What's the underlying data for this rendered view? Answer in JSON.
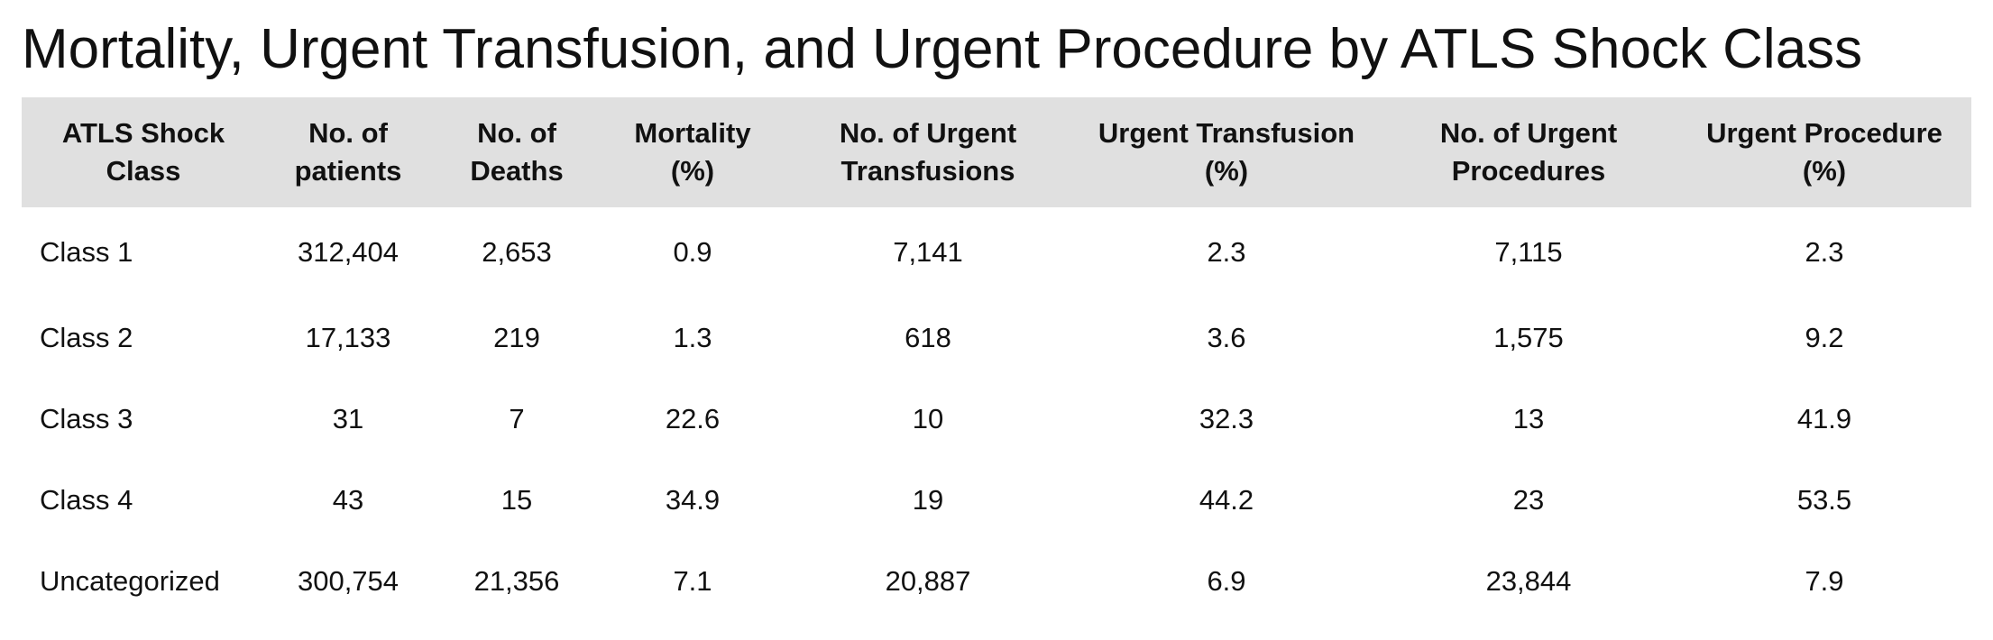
{
  "title": "Mortality, Urgent Transfusion, and Urgent Procedure by ATLS Shock Class",
  "table": {
    "headers": [
      [
        "ATLS Shock",
        "Class"
      ],
      [
        "No. of",
        "patients"
      ],
      [
        "No. of",
        "Deaths"
      ],
      [
        "Mortality",
        "(%)"
      ],
      [
        "No. of Urgent",
        "Transfusions"
      ],
      [
        "Urgent Transfusion",
        "(%)"
      ],
      [
        "No. of Urgent",
        "Procedures"
      ],
      [
        "Urgent Procedure",
        "(%)"
      ]
    ],
    "rows": [
      [
        "Class 1",
        "312,404",
        "2,653",
        "0.9",
        "7,141",
        "2.3",
        "7,115",
        "2.3"
      ],
      [
        "Class 2",
        "17,133",
        "219",
        "1.3",
        "618",
        "3.6",
        "1,575",
        "9.2"
      ],
      [
        "Class 3",
        "31",
        "7",
        "22.6",
        "10",
        "32.3",
        "13",
        "41.9"
      ],
      [
        "Class 4",
        "43",
        "15",
        "34.9",
        "19",
        "44.2",
        "23",
        "53.5"
      ],
      [
        "Uncategorized",
        "300,754",
        "21,356",
        "7.1",
        "20,887",
        "6.9",
        "23,844",
        "7.9"
      ]
    ]
  },
  "colors": {
    "header_background": "#e0e0e0",
    "text": "#111111",
    "page_background": "#ffffff"
  }
}
